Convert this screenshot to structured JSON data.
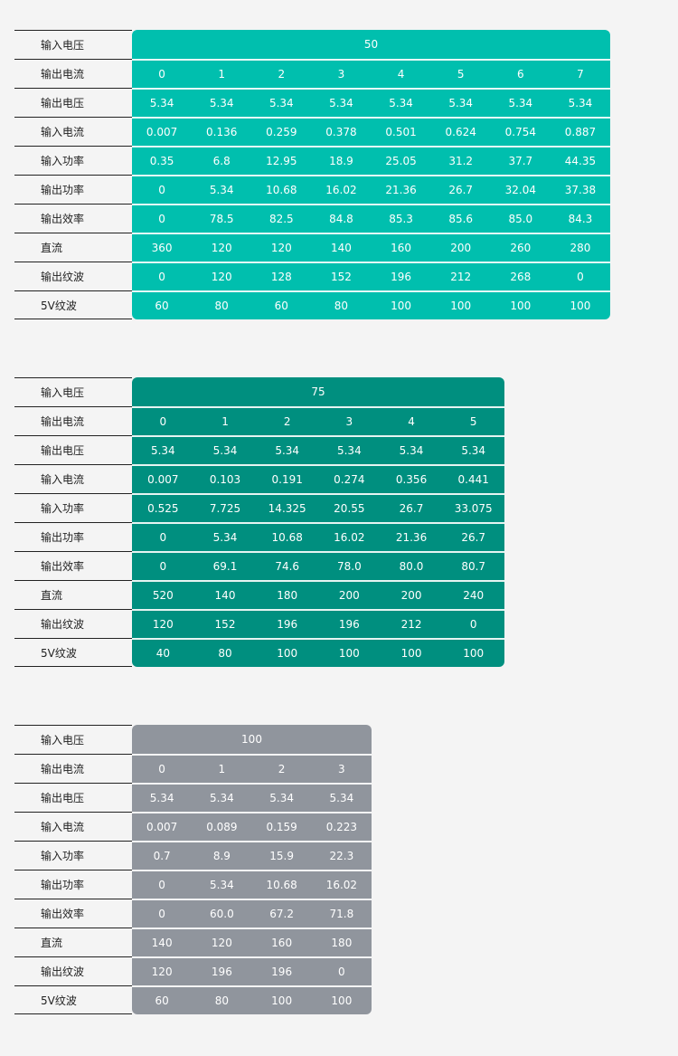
{
  "row_labels": [
    "输入电压",
    "输出电流",
    "输出电压",
    "输入电流",
    "输入功率",
    "输出功率",
    "输出效率",
    "直流",
    "输出纹波",
    "5V纹波"
  ],
  "tables": [
    {
      "input_voltage": "50",
      "color": "#00bfae",
      "rows": [
        [
          "0",
          "1",
          "2",
          "3",
          "4",
          "5",
          "6",
          "7"
        ],
        [
          "5.34",
          "5.34",
          "5.34",
          "5.34",
          "5.34",
          "5.34",
          "5.34",
          "5.34"
        ],
        [
          "0.007",
          "0.136",
          "0.259",
          "0.378",
          "0.501",
          "0.624",
          "0.754",
          "0.887"
        ],
        [
          "0.35",
          "6.8",
          "12.95",
          "18.9",
          "25.05",
          "31.2",
          "37.7",
          "44.35"
        ],
        [
          "0",
          "5.34",
          "10.68",
          "16.02",
          "21.36",
          "26.7",
          "32.04",
          "37.38"
        ],
        [
          "0",
          "78.5",
          "82.5",
          "84.8",
          "85.3",
          "85.6",
          "85.0",
          "84.3"
        ],
        [
          "360",
          "120",
          "120",
          "140",
          "160",
          "200",
          "260",
          "280"
        ],
        [
          "0",
          "120",
          "128",
          "152",
          "196",
          "212",
          "268",
          "0"
        ],
        [
          "60",
          "80",
          "60",
          "80",
          "100",
          "100",
          "100",
          "100"
        ]
      ]
    },
    {
      "input_voltage": "75",
      "color": "#008f7f",
      "rows": [
        [
          "0",
          "1",
          "2",
          "3",
          "4",
          "5"
        ],
        [
          "5.34",
          "5.34",
          "5.34",
          "5.34",
          "5.34",
          "5.34"
        ],
        [
          "0.007",
          "0.103",
          "0.191",
          "0.274",
          "0.356",
          "0.441"
        ],
        [
          "0.525",
          "7.725",
          "14.325",
          "20.55",
          "26.7",
          "33.075"
        ],
        [
          "0",
          "5.34",
          "10.68",
          "16.02",
          "21.36",
          "26.7"
        ],
        [
          "0",
          "69.1",
          "74.6",
          "78.0",
          "80.0",
          "80.7"
        ],
        [
          "520",
          "140",
          "180",
          "200",
          "200",
          "240"
        ],
        [
          "120",
          "152",
          "196",
          "196",
          "212",
          "0"
        ],
        [
          "40",
          "80",
          "100",
          "100",
          "100",
          "100"
        ]
      ]
    },
    {
      "input_voltage": "100",
      "color": "#90959d",
      "rows": [
        [
          "0",
          "1",
          "2",
          "3"
        ],
        [
          "5.34",
          "5.34",
          "5.34",
          "5.34"
        ],
        [
          "0.007",
          "0.089",
          "0.159",
          "0.223"
        ],
        [
          "0.7",
          "8.9",
          "15.9",
          "22.3"
        ],
        [
          "0",
          "5.34",
          "10.68",
          "16.02"
        ],
        [
          "0",
          "60.0",
          "67.2",
          "71.8"
        ],
        [
          "140",
          "120",
          "160",
          "180"
        ],
        [
          "120",
          "196",
          "196",
          "0"
        ],
        [
          "60",
          "80",
          "100",
          "100"
        ]
      ]
    }
  ]
}
